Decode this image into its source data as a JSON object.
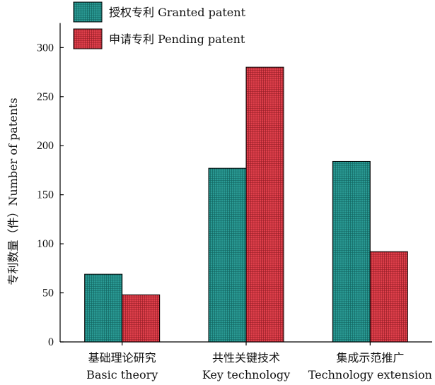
{
  "chart_data": {
    "type": "bar",
    "categories": [
      [
        "基础理论研究",
        "Basic theory"
      ],
      [
        "共性关键技术",
        "Key technology"
      ],
      [
        "集成示范推广",
        "Technology extension"
      ]
    ],
    "series": [
      {
        "name": "授权专利 Granted patent",
        "values": [
          69,
          177,
          184
        ],
        "color": "#2a9a94"
      },
      {
        "name": "申请专利 Pending patent",
        "values": [
          48,
          280,
          92
        ],
        "color": "#e0404c"
      }
    ],
    "xlabel": "",
    "ylabel": "专利数量（件）Number of patents",
    "ylim": [
      0,
      325
    ],
    "yticks": [
      0,
      50,
      100,
      150,
      200,
      250,
      300
    ],
    "grid": false,
    "legend_position": "top-left"
  }
}
